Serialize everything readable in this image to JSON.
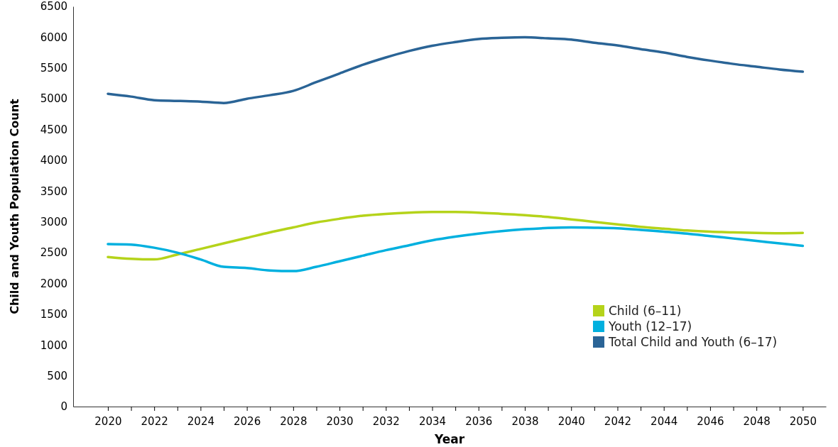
{
  "chart_data": {
    "type": "line",
    "xlabel": "Year",
    "ylabel": "Child and Youth Population Count",
    "x": [
      2020,
      2021,
      2022,
      2023,
      2024,
      2025,
      2026,
      2027,
      2028,
      2029,
      2030,
      2031,
      2032,
      2033,
      2034,
      2035,
      2036,
      2037,
      2038,
      2039,
      2040,
      2041,
      2042,
      2043,
      2044,
      2045,
      2046,
      2047,
      2048,
      2049,
      2050
    ],
    "xlim": [
      2018.5,
      2051
    ],
    "xticks": [
      2020,
      {
        "value": 2021,
        "label": null
      },
      2022,
      {
        "value": 2023,
        "label": null
      },
      2024,
      {
        "value": 2025,
        "label": null
      },
      2026,
      {
        "value": 2027,
        "label": null
      },
      2028,
      {
        "value": 2029,
        "label": null
      },
      2030,
      {
        "value": 2031,
        "label": null
      },
      2032,
      {
        "value": 2033,
        "label": null
      },
      2034,
      {
        "value": 2035,
        "label": null
      },
      2036,
      {
        "value": 2037,
        "label": null
      },
      2038,
      {
        "value": 2039,
        "label": null
      },
      2040,
      {
        "value": 2041,
        "label": null
      },
      2042,
      {
        "value": 2043,
        "label": null
      },
      2044,
      {
        "value": 2045,
        "label": null
      },
      2046,
      {
        "value": 2047,
        "label": null
      },
      2048,
      {
        "value": 2049,
        "label": null
      },
      2050
    ],
    "ylim": [
      0,
      6500
    ],
    "yticks": [
      0,
      500,
      1000,
      1500,
      2000,
      2500,
      3000,
      3500,
      4000,
      4500,
      5000,
      5500,
      6000,
      6500
    ],
    "legend": "bottom right",
    "marker": "none",
    "line_style": "solid",
    "grid": false,
    "series": [
      {
        "name": "Child (6–11)",
        "color": "#b5d31a",
        "values": [
          2430,
          2400,
          2390,
          2470,
          2560,
          2650,
          2740,
          2830,
          2910,
          2990,
          3050,
          3100,
          3130,
          3150,
          3160,
          3160,
          3150,
          3130,
          3110,
          3080,
          3040,
          3000,
          2960,
          2920,
          2890,
          2860,
          2840,
          2830,
          2820,
          2815,
          2820
        ]
      },
      {
        "name": "Youth (12–17)",
        "color": "#00b0df",
        "values": [
          2640,
          2630,
          2580,
          2500,
          2390,
          2270,
          2250,
          2210,
          2200,
          2270,
          2360,
          2450,
          2540,
          2620,
          2700,
          2760,
          2810,
          2850,
          2880,
          2900,
          2910,
          2905,
          2895,
          2870,
          2840,
          2810,
          2770,
          2730,
          2690,
          2650,
          2610
        ]
      },
      {
        "name": "Total Child and Youth (6–17)",
        "color": "#2a6496",
        "values": [
          5080,
          5035,
          4977,
          4965,
          4954,
          4931,
          5000,
          5058,
          5127,
          5270,
          5410,
          5550,
          5670,
          5775,
          5860,
          5920,
          5970,
          5990,
          6000,
          5980,
          5960,
          5910,
          5865,
          5805,
          5750,
          5680,
          5620,
          5565,
          5520,
          5475,
          5440
        ]
      }
    ]
  }
}
